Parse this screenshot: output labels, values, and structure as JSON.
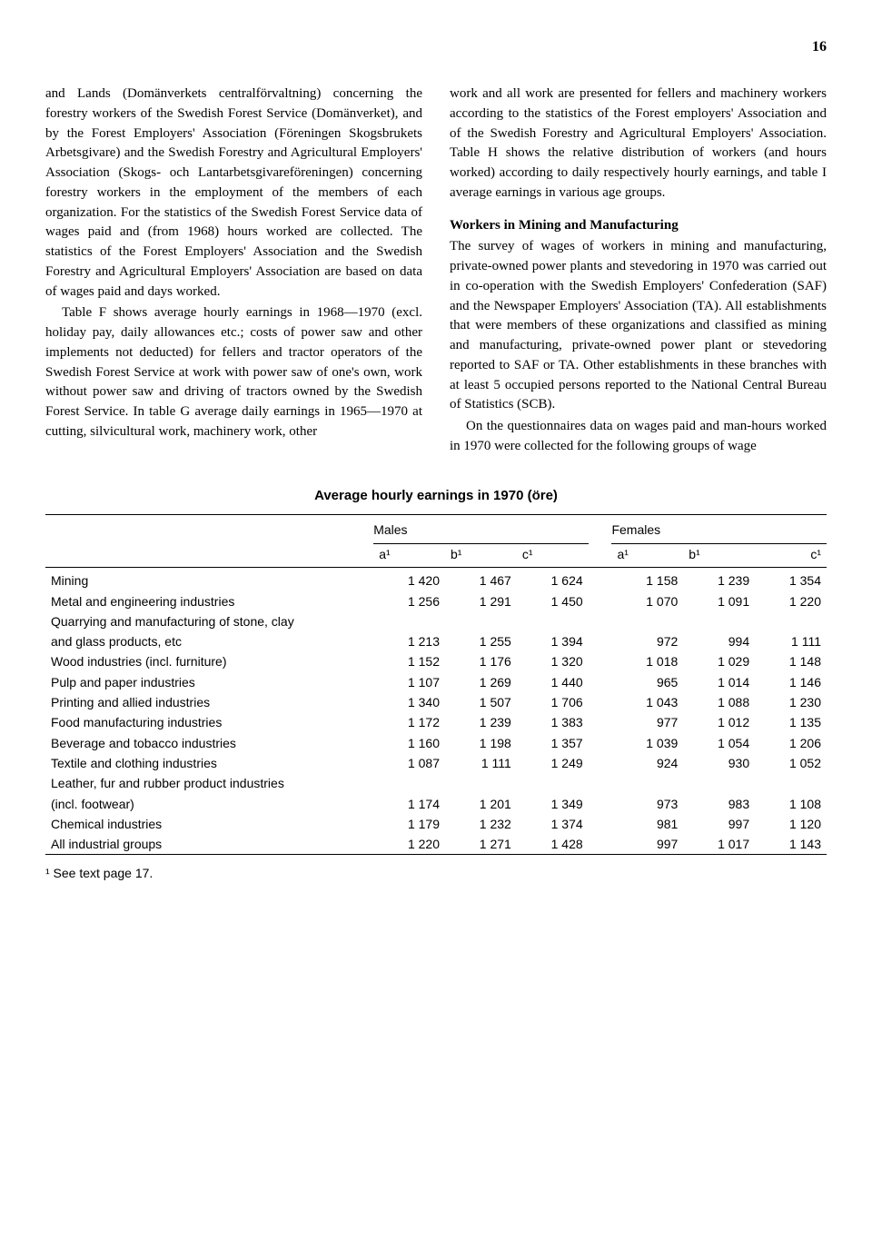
{
  "page_number": "16",
  "left_col": {
    "p1": "and Lands (Domänverkets centralförvaltning) concerning the forestry workers of the Swedish Forest Service (Domänverket), and by the Forest Employers' Association (Föreningen Skogsbrukets Arbetsgivare) and the Swedish Forestry and Agricultural Employers' Association (Skogs- och Lantarbetsgivareföreningen) concerning forestry workers in the employment of the members of each organization. For the statistics of the Swedish Forest Service data of wages paid and (from 1968) hours worked are collected. The statistics of the Forest Employers' Association and the Swedish Forestry and Agricultural Employers' Association are based on data of wages paid and days worked.",
    "p2": "Table F shows average hourly earnings in 1968—1970 (excl. holiday pay, daily allowances etc.; costs of power saw and other implements not deducted) for fellers and tractor operators of the Swedish Forest Service at work with power saw of one's own, work without power saw and driving of tractors owned by the Swedish Forest Service. In table G average daily earnings in 1965—1970 at cutting, silvicultural work, machinery work, other"
  },
  "right_col": {
    "p1": "work and all work are presented for fellers and machinery workers according to the statistics of the Forest employers' Association and of the Swedish Forestry and Agricultural Employers' Association. Table H shows the relative distribution of workers (and hours worked) according to daily respectively hourly earnings, and table I average earnings in various age groups.",
    "heading": "Workers in Mining and Manufacturing",
    "p2": "The survey of wages of workers in mining and manufacturing, private-owned power plants and stevedoring in 1970 was carried out in co-operation with the Swedish Employers' Confederation (SAF) and the Newspaper Employers' Association (TA). All establishments that were members of these organizations and classified as mining and manufacturing, private-owned power plant or stevedoring reported to SAF or TA. Other establishments in these branches with at least 5 occupied persons reported to the National Central Bureau of Statistics (SCB).",
    "p3": "On the questionnaires data on wages paid and man-hours worked in 1970 were collected for the following groups of wage"
  },
  "table": {
    "title": "Average hourly earnings in 1970 (öre)",
    "group_headers": [
      "Males",
      "Females"
    ],
    "sub_headers": [
      "a¹",
      "b¹",
      "c¹",
      "a¹",
      "b¹",
      "c¹"
    ],
    "rows": [
      {
        "label": "Mining",
        "vals": [
          "1 420",
          "1 467",
          "1 624",
          "1 158",
          "1 239",
          "1 354"
        ]
      },
      {
        "label": "Metal and engineering industries",
        "vals": [
          "1 256",
          "1 291",
          "1 450",
          "1 070",
          "1 091",
          "1 220"
        ]
      },
      {
        "label": "Quarrying and manufacturing of stone, clay",
        "vals": [
          "",
          "",
          "",
          "",
          "",
          ""
        ]
      },
      {
        "label": "and glass products, etc",
        "vals": [
          "1 213",
          "1 255",
          "1 394",
          "972",
          "994",
          "1 111"
        ]
      },
      {
        "label": "Wood industries (incl. furniture)",
        "vals": [
          "1 152",
          "1 176",
          "1 320",
          "1 018",
          "1 029",
          "1 148"
        ]
      },
      {
        "label": "Pulp and paper industries",
        "vals": [
          "1 107",
          "1 269",
          "1 440",
          "965",
          "1 014",
          "1 146"
        ]
      },
      {
        "label": "Printing and allied industries",
        "vals": [
          "1 340",
          "1 507",
          "1 706",
          "1 043",
          "1 088",
          "1 230"
        ]
      },
      {
        "label": "Food manufacturing industries",
        "vals": [
          "1 172",
          "1 239",
          "1 383",
          "977",
          "1 012",
          "1 135"
        ]
      },
      {
        "label": "Beverage and tobacco industries",
        "vals": [
          "1 160",
          "1 198",
          "1 357",
          "1 039",
          "1 054",
          "1 206"
        ]
      },
      {
        "label": "Textile and clothing industries",
        "vals": [
          "1 087",
          "1 111",
          "1 249",
          "924",
          "930",
          "1 052"
        ]
      },
      {
        "label": "Leather, fur and rubber product industries",
        "vals": [
          "",
          "",
          "",
          "",
          "",
          ""
        ]
      },
      {
        "label": "(incl. footwear)",
        "vals": [
          "1 174",
          "1 201",
          "1 349",
          "973",
          "983",
          "1 108"
        ]
      },
      {
        "label": "Chemical industries",
        "vals": [
          "1 179",
          "1 232",
          "1 374",
          "981",
          "997",
          "1 120"
        ]
      },
      {
        "label": "All industrial groups",
        "vals": [
          "1 220",
          "1 271",
          "1 428",
          "997",
          "1 017",
          "1 143"
        ]
      }
    ]
  },
  "footnote": "¹ See text page 17."
}
